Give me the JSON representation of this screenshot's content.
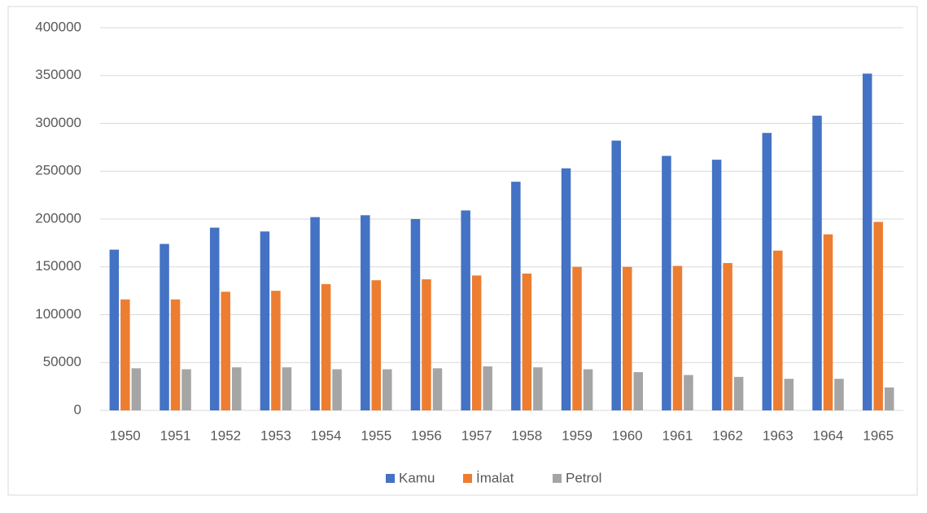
{
  "chart_data": {
    "type": "bar",
    "categories": [
      "1950",
      "1951",
      "1952",
      "1953",
      "1954",
      "1955",
      "1956",
      "1957",
      "1958",
      "1959",
      "1960",
      "1961",
      "1962",
      "1963",
      "1964",
      "1965"
    ],
    "series": [
      {
        "name": "Kamu",
        "color": "#4472c4",
        "values": [
          168000,
          174000,
          191000,
          187000,
          202000,
          204000,
          200000,
          209000,
          239000,
          253000,
          282000,
          266000,
          262000,
          290000,
          308000,
          352000
        ]
      },
      {
        "name": "İmalat",
        "color": "#ed7d31",
        "values": [
          116000,
          116000,
          124000,
          125000,
          132000,
          136000,
          137000,
          141000,
          143000,
          150000,
          150000,
          151000,
          154000,
          167000,
          184000,
          197000
        ]
      },
      {
        "name": "Petrol",
        "color": "#a5a5a5",
        "values": [
          44000,
          43000,
          45000,
          45000,
          43000,
          43000,
          44000,
          46000,
          45000,
          43000,
          40000,
          37000,
          35000,
          33000,
          33000,
          24000
        ]
      }
    ],
    "ylim": [
      0,
      400000
    ],
    "yticks": [
      0,
      50000,
      100000,
      150000,
      200000,
      250000,
      300000,
      350000,
      400000
    ],
    "grid": true,
    "legend": "bottom"
  }
}
